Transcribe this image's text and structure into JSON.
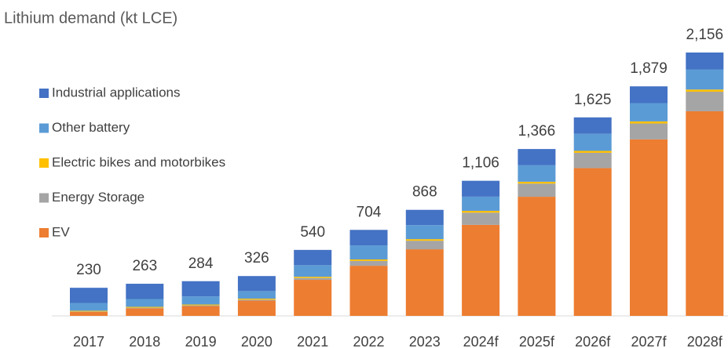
{
  "chart_data": {
    "type": "stacked-bar",
    "title": "Lithium demand (kt LCE)",
    "categories": [
      "2017",
      "2018",
      "2019",
      "2020",
      "2021",
      "2022",
      "2023",
      "2024f",
      "2025f",
      "2026f",
      "2027f",
      "2028f"
    ],
    "series": [
      {
        "name": "EV",
        "color": "#ED7D31",
        "values": [
          32,
          62,
          80,
          125,
          295,
          410,
          545,
          745,
          975,
          1210,
          1445,
          1675
        ]
      },
      {
        "name": "Energy Storage",
        "color": "#A5A5A5",
        "values": [
          4,
          5,
          6,
          8,
          15,
          40,
          70,
          100,
          108,
          125,
          130,
          160
        ]
      },
      {
        "name": "Electric bikes and motorbikes",
        "color": "#FFC000",
        "values": [
          6,
          7,
          7,
          8,
          10,
          12,
          13,
          15,
          15,
          16,
          17,
          18
        ]
      },
      {
        "name": "Other battery",
        "color": "#5B9BD5",
        "values": [
          64,
          64,
          66,
          62,
          95,
          115,
          115,
          116,
          135,
          140,
          150,
          165
        ]
      },
      {
        "name": "Industrial applications",
        "color": "#4472C4",
        "values": [
          124,
          125,
          125,
          123,
          125,
          127,
          125,
          130,
          133,
          134,
          137,
          138
        ]
      }
    ],
    "totals": [
      230,
      263,
      284,
      326,
      540,
      704,
      868,
      1106,
      1366,
      1625,
      1879,
      2156
    ],
    "total_labels": [
      "230",
      "263",
      "284",
      "326",
      "540",
      "704",
      "868",
      "1,106",
      "1,366",
      "1,625",
      "1,879",
      "2,156"
    ]
  }
}
